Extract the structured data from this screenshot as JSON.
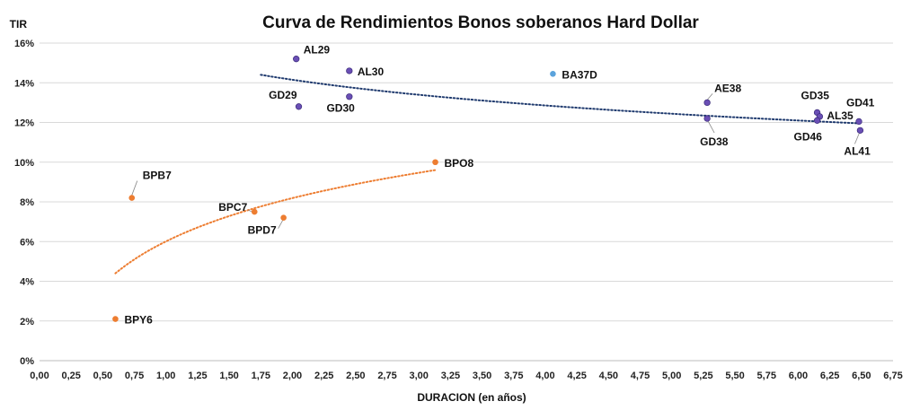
{
  "chart_data": {
    "type": "scatter",
    "title": "Curva de Rendimientos Bonos soberanos Hard Dollar",
    "xlabel": "DURACION (en años)",
    "ylabel": "TIR",
    "xlim": [
      0,
      6.75
    ],
    "ylim": [
      0,
      16
    ],
    "x_ticks": [
      "0,00",
      "0,25",
      "0,50",
      "0,75",
      "1,00",
      "1,25",
      "1,50",
      "1,75",
      "2,00",
      "2,25",
      "2,50",
      "2,75",
      "3,00",
      "3,25",
      "3,50",
      "3,75",
      "4,00",
      "4,25",
      "4,50",
      "4,75",
      "5,00",
      "5,25",
      "5,50",
      "5,75",
      "6,00",
      "6,25",
      "6,50",
      "6,75"
    ],
    "y_ticks": [
      "0%",
      "2%",
      "4%",
      "6%",
      "8%",
      "10%",
      "12%",
      "14%",
      "16%"
    ],
    "grid": "horizontal",
    "legend": "none",
    "series": [
      {
        "color": "#6a4fb5",
        "points": [
          {
            "label": "AL29",
            "x": 2.03,
            "y": 15.2
          },
          {
            "label": "AL30",
            "x": 2.45,
            "y": 14.6
          },
          {
            "label": "GD29",
            "x": 2.05,
            "y": 12.8
          },
          {
            "label": "GD30",
            "x": 2.45,
            "y": 13.3
          },
          {
            "label": "AE38",
            "x": 5.28,
            "y": 13.0
          },
          {
            "label": "GD38",
            "x": 5.28,
            "y": 12.2
          },
          {
            "label": "GD35",
            "x": 6.15,
            "y": 12.5
          },
          {
            "label": "AL35",
            "x": 6.17,
            "y": 12.3
          },
          {
            "label": "GD46",
            "x": 6.15,
            "y": 12.1
          },
          {
            "label": "GD41",
            "x": 6.48,
            "y": 12.05
          },
          {
            "label": "AL41",
            "x": 6.49,
            "y": 11.6
          }
        ]
      },
      {
        "color": "#5ba3dc",
        "points": [
          {
            "label": "BA37D",
            "x": 4.06,
            "y": 14.45
          }
        ]
      },
      {
        "color": "#ed7d31",
        "points": [
          {
            "label": "BPY6",
            "x": 0.6,
            "y": 2.1
          },
          {
            "label": "BPB7",
            "x": 0.73,
            "y": 8.2
          },
          {
            "label": "BPC7",
            "x": 1.7,
            "y": 7.5
          },
          {
            "label": "BPD7",
            "x": 1.93,
            "y": 7.2
          },
          {
            "label": "BPO8",
            "x": 3.13,
            "y": 10.0
          }
        ]
      }
    ],
    "trendlines": [
      {
        "color": "#1f3a6e",
        "type": "logarithmic",
        "x_from": 1.75,
        "x_to": 6.5,
        "y_from": 14.4,
        "y_to": 11.95
      },
      {
        "color": "#ed7d31",
        "type": "logarithmic",
        "x_from": 0.6,
        "x_to": 3.13,
        "y_from": 4.4,
        "y_to": 9.6
      }
    ]
  }
}
